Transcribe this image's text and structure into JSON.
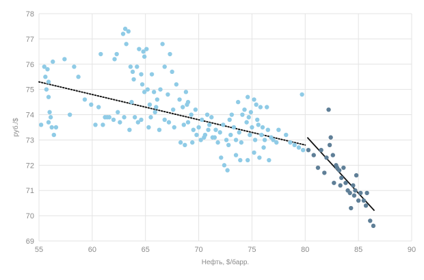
{
  "chart_data": {
    "type": "scatter",
    "title": "",
    "xlabel": "Нефть, $/барр.",
    "ylabel": "руб./$",
    "xlim": [
      55,
      90
    ],
    "ylim": [
      69,
      78
    ],
    "x_ticks": [
      55,
      60,
      65,
      70,
      75,
      80,
      85,
      90
    ],
    "y_ticks": [
      69,
      70,
      71,
      72,
      73,
      74,
      75,
      76,
      77,
      78
    ],
    "grid": true,
    "legend": "none",
    "series": [
      {
        "color": "#8fcbe6",
        "points": [
          [
            55.2,
            73.6
          ],
          [
            55.5,
            75.9
          ],
          [
            55.8,
            75.8
          ],
          [
            55.6,
            75.5
          ],
          [
            55.9,
            75.3
          ],
          [
            55.7,
            75.0
          ],
          [
            55.9,
            74.7
          ],
          [
            56.0,
            74.1
          ],
          [
            56.1,
            73.9
          ],
          [
            55.9,
            73.7
          ],
          [
            56.2,
            73.5
          ],
          [
            56.4,
            73.2
          ],
          [
            56.6,
            73.5
          ],
          [
            56.3,
            76.1
          ],
          [
            57.4,
            76.2
          ],
          [
            58.3,
            75.9
          ],
          [
            58.7,
            75.5
          ],
          [
            59.3,
            74.6
          ],
          [
            60.6,
            74.3
          ],
          [
            60.8,
            76.4
          ],
          [
            61.2,
            73.9
          ],
          [
            61.0,
            73.6
          ],
          [
            61.6,
            73.9
          ],
          [
            62.1,
            76.2
          ],
          [
            62.3,
            76.4
          ],
          [
            62.6,
            73.7
          ],
          [
            62.9,
            77.2
          ],
          [
            63.1,
            77.4
          ],
          [
            63.4,
            77.3
          ],
          [
            63.2,
            76.8
          ],
          [
            63.6,
            75.9
          ],
          [
            63.8,
            75.7
          ],
          [
            63.9,
            75.4
          ],
          [
            64.2,
            75.9
          ],
          [
            64.4,
            76.6
          ],
          [
            64.6,
            75.6
          ],
          [
            64.8,
            76.5
          ],
          [
            64.9,
            76.3
          ],
          [
            65.1,
            76.6
          ],
          [
            64.7,
            75.2
          ],
          [
            64.9,
            74.9
          ],
          [
            65.2,
            75.0
          ],
          [
            65.4,
            74.4
          ],
          [
            65.6,
            75.6
          ],
          [
            65.8,
            74.9
          ],
          [
            66.0,
            74.3
          ],
          [
            66.4,
            75.0
          ],
          [
            66.6,
            76.8
          ],
          [
            66.8,
            75.9
          ],
          [
            67.1,
            74.8
          ],
          [
            67.3,
            76.4
          ],
          [
            67.5,
            75.7
          ],
          [
            67.9,
            75.2
          ],
          [
            68.2,
            74.6
          ],
          [
            68.5,
            74.3
          ],
          [
            68.8,
            74.9
          ],
          [
            69.0,
            74.5
          ],
          [
            69.3,
            74.0
          ],
          [
            69.0,
            73.7
          ],
          [
            68.6,
            73.6
          ],
          [
            69.5,
            73.4
          ],
          [
            69.8,
            73.2
          ],
          [
            70.0,
            73.5
          ],
          [
            70.3,
            73.8
          ],
          [
            70.6,
            73.2
          ],
          [
            70.9,
            73.4
          ],
          [
            71.2,
            73.9
          ],
          [
            71.5,
            73.1
          ],
          [
            71.8,
            72.9
          ],
          [
            72.0,
            73.3
          ],
          [
            72.3,
            73.6
          ],
          [
            72.6,
            73.0
          ],
          [
            72.8,
            72.8
          ],
          [
            73.0,
            73.2
          ],
          [
            73.3,
            73.5
          ],
          [
            73.5,
            73.0
          ],
          [
            73.8,
            73.3
          ],
          [
            74.0,
            72.9
          ],
          [
            74.3,
            74.2
          ],
          [
            74.5,
            73.7
          ],
          [
            74.8,
            73.2
          ],
          [
            75.0,
            73.5
          ],
          [
            75.3,
            73.0
          ],
          [
            75.6,
            73.6
          ],
          [
            75.9,
            73.2
          ],
          [
            76.2,
            73.0
          ],
          [
            76.5,
            73.4
          ],
          [
            74.6,
            74.7
          ],
          [
            75.2,
            74.6
          ],
          [
            74.9,
            74.1
          ],
          [
            73.7,
            74.5
          ],
          [
            74.1,
            74.0
          ],
          [
            75.4,
            74.4
          ],
          [
            75.8,
            74.3
          ],
          [
            76.4,
            74.3
          ],
          [
            71.3,
            73.1
          ],
          [
            72.1,
            72.3
          ],
          [
            72.4,
            72.0
          ],
          [
            72.7,
            71.8
          ],
          [
            73.9,
            72.2
          ],
          [
            74.6,
            72.2
          ],
          [
            75.2,
            72.5
          ],
          [
            75.7,
            72.3
          ],
          [
            76.1,
            72.7
          ],
          [
            76.6,
            72.2
          ],
          [
            73.5,
            72.4
          ],
          [
            70.5,
            73.1
          ],
          [
            70.2,
            73.0
          ],
          [
            69.4,
            72.9
          ],
          [
            68.7,
            72.8
          ],
          [
            68.3,
            72.9
          ],
          [
            67.7,
            73.5
          ],
          [
            67.2,
            73.7
          ],
          [
            66.8,
            73.8
          ],
          [
            66.3,
            73.4
          ],
          [
            65.9,
            74.1
          ],
          [
            65.3,
            73.5
          ],
          [
            64.6,
            73.8
          ],
          [
            64.0,
            73.9
          ],
          [
            63.5,
            73.4
          ],
          [
            63.0,
            73.9
          ],
          [
            62.4,
            74.1
          ],
          [
            78.6,
            72.9
          ],
          [
            79.0,
            72.8
          ],
          [
            79.4,
            72.7
          ],
          [
            79.8,
            72.6
          ],
          [
            79.7,
            74.8
          ],
          [
            77.5,
            73.4
          ],
          [
            76.8,
            73.1
          ],
          [
            77.3,
            72.9
          ],
          [
            78.2,
            73.2
          ],
          [
            71.0,
            73.6
          ],
          [
            70.8,
            74.0
          ],
          [
            69.7,
            74.2
          ],
          [
            68.9,
            74.4
          ],
          [
            67.6,
            74.2
          ],
          [
            66.1,
            74.6
          ],
          [
            65.5,
            73.9
          ],
          [
            64.3,
            73.7
          ],
          [
            63.7,
            74.5
          ],
          [
            62.0,
            73.8
          ],
          [
            61.4,
            73.9
          ],
          [
            57.9,
            74.0
          ],
          [
            59.9,
            74.4
          ],
          [
            60.3,
            73.6
          ],
          [
            73.1,
            74.0
          ],
          [
            72.9,
            73.8
          ],
          [
            71.6,
            73.4
          ],
          [
            74.7,
            73.9
          ],
          [
            75.5,
            73.8
          ],
          [
            76.0,
            73.5
          ],
          [
            77.0,
            73.0
          ]
        ]
      },
      {
        "color": "#5f7f97",
        "points": [
          [
            80.3,
            72.6
          ],
          [
            80.8,
            72.4
          ],
          [
            81.2,
            71.9
          ],
          [
            81.5,
            72.6
          ],
          [
            81.8,
            71.7
          ],
          [
            82.0,
            72.3
          ],
          [
            82.2,
            74.2
          ],
          [
            82.4,
            73.1
          ],
          [
            82.3,
            72.8
          ],
          [
            82.6,
            72.4
          ],
          [
            82.7,
            71.3
          ],
          [
            83.0,
            71.9
          ],
          [
            83.2,
            71.8
          ],
          [
            83.4,
            71.5
          ],
          [
            83.6,
            71.9
          ],
          [
            83.8,
            71.3
          ],
          [
            84.0,
            71.0
          ],
          [
            84.2,
            70.9
          ],
          [
            84.3,
            70.3
          ],
          [
            84.5,
            71.2
          ],
          [
            84.6,
            70.8
          ],
          [
            84.8,
            71.6
          ],
          [
            85.0,
            70.6
          ],
          [
            85.2,
            70.9
          ],
          [
            85.5,
            70.6
          ],
          [
            85.8,
            70.9
          ],
          [
            86.1,
            69.8
          ],
          [
            86.4,
            69.6
          ],
          [
            83.3,
            71.2
          ],
          [
            82.9,
            72.0
          ],
          [
            84.7,
            71.0
          ],
          [
            85.7,
            70.4
          ]
        ]
      }
    ],
    "trendlines": [
      {
        "style": "dotted",
        "color": "#111111",
        "x": [
          55,
          80
        ],
        "y": [
          75.3,
          72.8
        ]
      },
      {
        "style": "solid",
        "color": "#111111",
        "x": [
          80.2,
          86.5
        ],
        "y": [
          73.1,
          70.2
        ]
      }
    ]
  }
}
